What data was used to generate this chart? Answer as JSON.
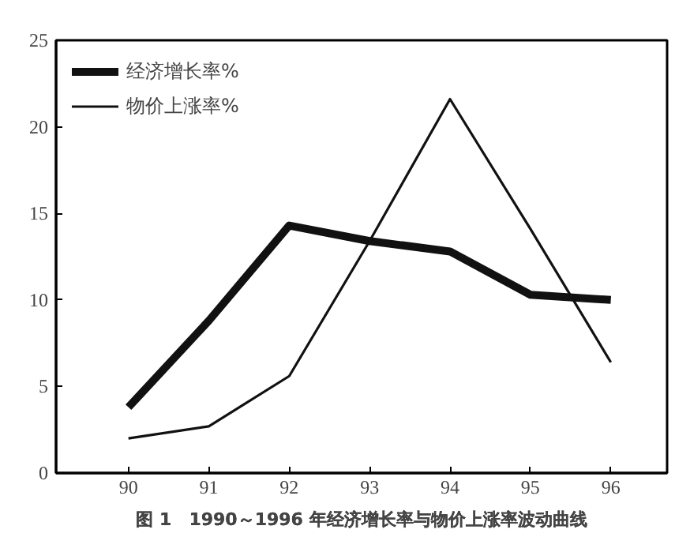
{
  "chart_data": {
    "type": "line",
    "title": "图 1　1990～1996 年经济增长率与物价上涨率波动曲线",
    "x": [
      90,
      91,
      92,
      93,
      94,
      95,
      96
    ],
    "series": [
      {
        "name": "经济增长率%",
        "color": "#111111",
        "values": [
          3.8,
          8.8,
          14.3,
          13.4,
          12.8,
          10.3,
          10.0
        ]
      },
      {
        "name": "物价上涨率%",
        "color": "#111111",
        "values": [
          2.0,
          2.7,
          5.6,
          13.4,
          21.6,
          14.1,
          6.4
        ]
      }
    ],
    "xlim": [
      89.1,
      96.7
    ],
    "ylim": [
      0,
      25
    ],
    "xticks": [
      90,
      91,
      92,
      93,
      94,
      95,
      96
    ],
    "yticks": [
      0,
      5,
      10,
      15,
      20,
      25
    ],
    "grid": false,
    "legend": "top left",
    "marker": "none",
    "line_style": "solid"
  }
}
